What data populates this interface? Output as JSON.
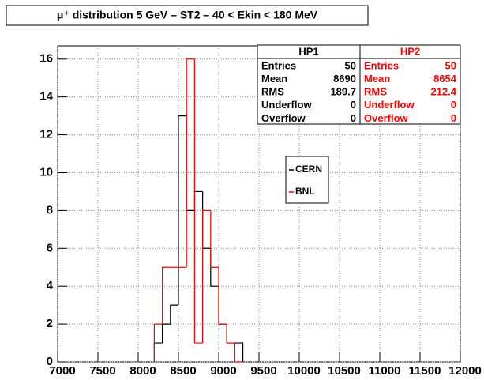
{
  "chart_data": {
    "type": "histogram",
    "title": "μ⁺ distribution 5 GeV – ST2 – 40 < Ekin < 180 MeV",
    "bins": [
      8200,
      8300,
      8400,
      8500,
      8600,
      8700,
      8800,
      8900,
      9000,
      9100,
      9200,
      9300
    ],
    "series": [
      {
        "name": "CERN",
        "color": "#000000",
        "values": [
          1,
          2,
          3,
          13,
          8,
          9,
          6,
          4,
          2,
          1,
          1
        ]
      },
      {
        "name": "BNL",
        "color": "#ff0000",
        "values": [
          2,
          5,
          5,
          5,
          16,
          1,
          8,
          5,
          2,
          1,
          0
        ]
      }
    ],
    "xlim": [
      7000,
      12000
    ],
    "xticks": [
      7000,
      7500,
      8000,
      8500,
      9000,
      9500,
      10000,
      10500,
      11000,
      11500,
      12000
    ],
    "ylim": [
      0,
      16.7
    ],
    "yticks": [
      0,
      2,
      4,
      6,
      8,
      10,
      12,
      14,
      16
    ],
    "grid": true,
    "stats": [
      {
        "name": "HP1",
        "color": "#000000",
        "rows": [
          [
            "Entries",
            "50"
          ],
          [
            "Mean",
            "8690"
          ],
          [
            "RMS",
            "189.7"
          ],
          [
            "Underflow",
            "0"
          ],
          [
            "Overflow",
            "0"
          ]
        ]
      },
      {
        "name": "HP2",
        "color": "#ff0000",
        "rows": [
          [
            "Entries",
            "50"
          ],
          [
            "Mean",
            "8654"
          ],
          [
            "RMS",
            "212.4"
          ],
          [
            "Underflow",
            "0"
          ],
          [
            "Overflow",
            "0"
          ]
        ]
      }
    ]
  }
}
